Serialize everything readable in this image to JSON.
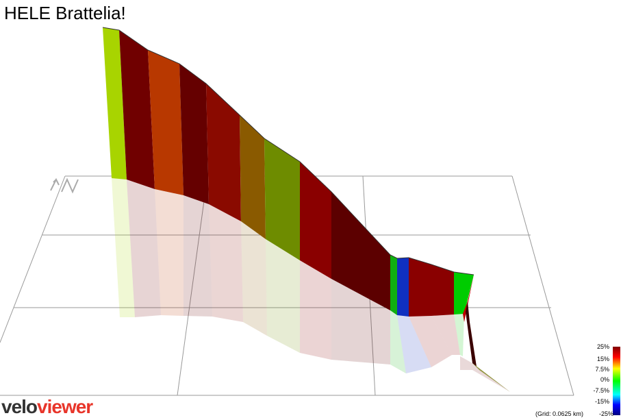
{
  "title": "HELE Brattelia!",
  "legend": {
    "labels": [
      "25%",
      "15%",
      "7.5%",
      "0%",
      "-7.5%",
      "-15%",
      "-25%"
    ]
  },
  "grid_note": "(Grid: 0.0625 km)",
  "logo": {
    "first": "velo",
    "second": "viewer"
  }
}
